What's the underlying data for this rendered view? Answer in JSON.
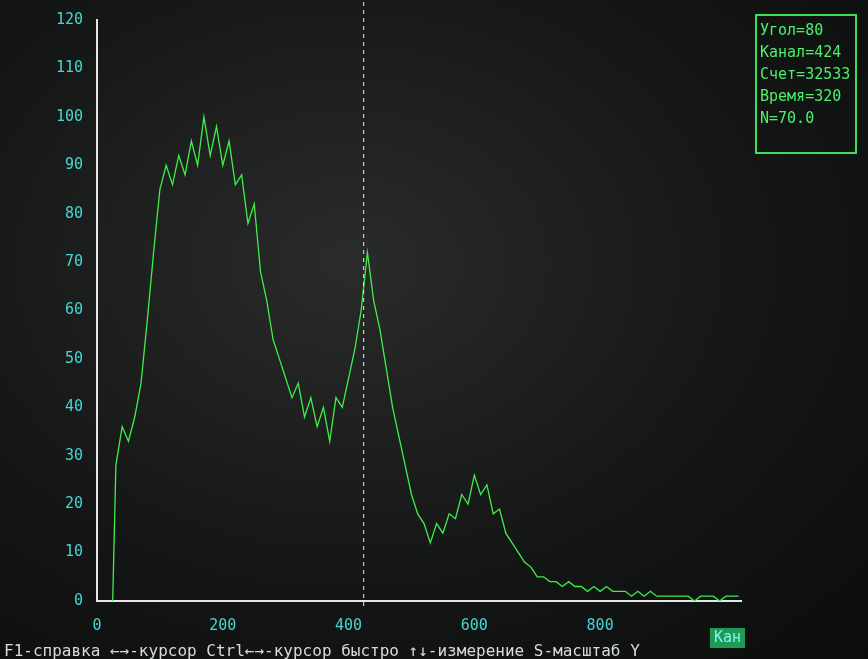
{
  "chart_data": {
    "type": "line",
    "color": "#3cf04a",
    "grid": false,
    "x_label": "Кан",
    "cursor": 424,
    "annotations": [
      "Угол=80",
      "Канал=424",
      "Счет=32533",
      "Время=320",
      "N=70.0"
    ],
    "footer": "F1-справка ←→-курсор Ctrl←→-курсор быстро ↑↓-измерение S-масштаб Y",
    "xlim": [
      0,
      1024
    ],
    "xticks": [
      0,
      200,
      400,
      600,
      800
    ],
    "ylim": [
      0,
      120
    ],
    "yticks": [
      0,
      10,
      20,
      30,
      40,
      50,
      60,
      70,
      80,
      90,
      100,
      110,
      120
    ],
    "x": [
      25,
      30,
      40,
      50,
      60,
      70,
      80,
      90,
      100,
      110,
      120,
      130,
      140,
      150,
      160,
      170,
      180,
      190,
      200,
      210,
      220,
      230,
      240,
      250,
      260,
      270,
      280,
      290,
      300,
      310,
      320,
      330,
      340,
      350,
      360,
      370,
      380,
      390,
      400,
      410,
      420,
      430,
      440,
      450,
      460,
      470,
      480,
      490,
      500,
      510,
      520,
      530,
      540,
      550,
      560,
      570,
      580,
      590,
      600,
      610,
      620,
      630,
      640,
      650,
      660,
      670,
      680,
      690,
      700,
      710,
      720,
      730,
      740,
      750,
      760,
      770,
      780,
      790,
      800,
      810,
      820,
      830,
      840,
      850,
      860,
      870,
      880,
      890,
      900,
      910,
      920,
      930,
      940,
      950,
      960,
      970,
      980,
      990,
      1000,
      1010,
      1020
    ],
    "values": [
      0,
      28,
      36,
      33,
      38,
      45,
      58,
      72,
      85,
      90,
      86,
      92,
      88,
      95,
      90,
      100,
      92,
      98,
      90,
      95,
      86,
      88,
      78,
      82,
      68,
      62,
      54,
      50,
      46,
      42,
      45,
      38,
      42,
      36,
      40,
      33,
      42,
      40,
      46,
      52,
      60,
      72,
      62,
      56,
      48,
      40,
      34,
      28,
      22,
      18,
      16,
      12,
      16,
      14,
      18,
      17,
      22,
      20,
      26,
      22,
      24,
      18,
      19,
      14,
      12,
      10,
      8,
      7,
      5,
      5,
      4,
      4,
      3,
      4,
      3,
      3,
      2,
      3,
      2,
      3,
      2,
      2,
      2,
      1,
      2,
      1,
      2,
      1,
      1,
      1,
      1,
      1,
      1,
      0,
      1,
      1,
      1,
      0,
      1,
      1,
      1
    ]
  }
}
